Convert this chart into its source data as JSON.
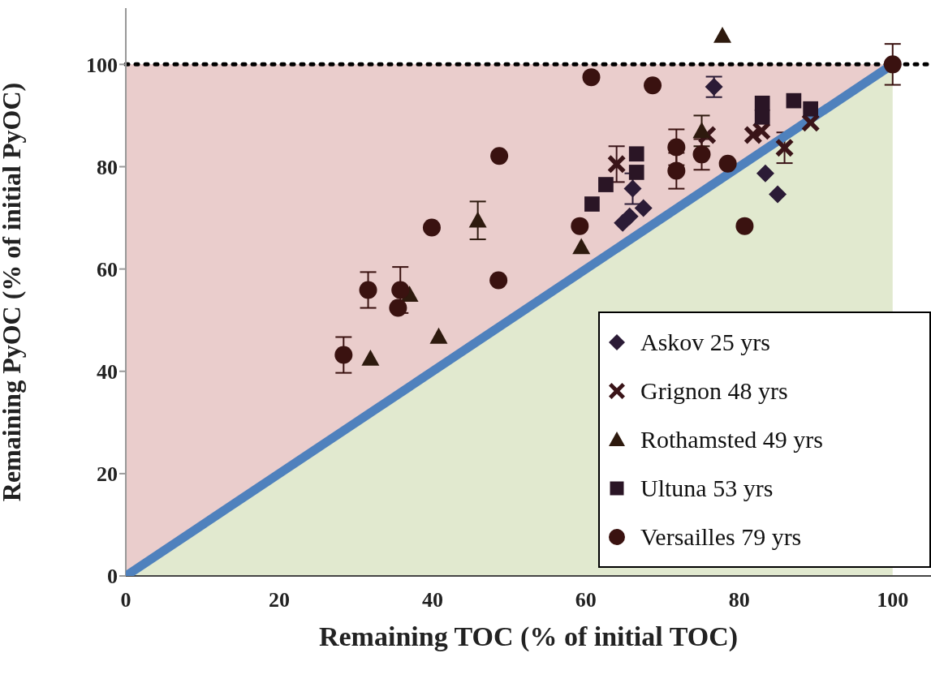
{
  "chart_data": {
    "type": "scatter",
    "xlabel": "Remaining TOC (% of initial TOC)",
    "ylabel": "Remaining PyOC (% of initial PyOC)",
    "xlim": [
      0,
      105
    ],
    "ylim": [
      0,
      111
    ],
    "xticks": [
      0,
      20,
      40,
      60,
      80,
      100
    ],
    "yticks": [
      0,
      20,
      40,
      60,
      80,
      100
    ],
    "legend": "bottom right",
    "series": [
      {
        "name": "Askov 25 yrs",
        "marker": "diamond",
        "color": "#2b1b36",
        "x": [
          76.7,
          64.8,
          65.7,
          67.5,
          66.1,
          83.4,
          85.0
        ],
        "values": [
          95.6,
          69.0,
          70.3,
          71.9,
          75.7,
          78.7,
          74.6
        ],
        "errors": [
          2,
          null,
          null,
          null,
          3,
          null,
          null
        ]
      },
      {
        "name": "Grignon 48 yrs",
        "marker": "cross",
        "color": "#3a1418",
        "x": [
          64.0,
          75.8,
          81.8,
          82.9,
          85.9,
          89.3
        ],
        "values": [
          80.5,
          86.2,
          86.2,
          87.0,
          83.7,
          88.6
        ],
        "errors": [
          3.5,
          null,
          null,
          null,
          3,
          null
        ]
      },
      {
        "name": "Rothamsted 49 yrs",
        "marker": "triangle",
        "color": "#2e1a0e",
        "x": [
          31.9,
          37.0,
          40.8,
          45.9,
          59.4,
          75.1,
          77.8
        ],
        "values": [
          42.5,
          55.0,
          46.8,
          69.5,
          64.3,
          87.0,
          105.6
        ],
        "errors": [
          null,
          null,
          null,
          3.7,
          null,
          3,
          null
        ]
      },
      {
        "name": "Ultuna 53 yrs",
        "marker": "square",
        "color": "#2a1525",
        "x": [
          60.8,
          62.6,
          66.6,
          66.6,
          83.0,
          83.0,
          87.1,
          89.3
        ],
        "values": [
          72.7,
          76.5,
          82.5,
          78.9,
          92.4,
          89.7,
          92.9,
          91.3
        ],
        "errors": [
          null,
          null,
          null,
          null,
          null,
          null,
          null,
          null
        ]
      },
      {
        "name": "Versailles 79 yrs",
        "marker": "circle",
        "color": "#3a1210",
        "x": [
          28.4,
          31.6,
          35.8,
          35.5,
          39.9,
          48.6,
          48.7,
          59.2,
          60.7,
          68.7,
          71.8,
          71.8,
          75.1,
          78.5,
          80.7,
          100.0
        ],
        "values": [
          43.2,
          55.9,
          55.9,
          52.4,
          68.1,
          57.8,
          82.1,
          68.4,
          97.5,
          95.9,
          83.8,
          79.2,
          82.4,
          80.6,
          68.4,
          100.0
        ],
        "errors": [
          3.5,
          3.5,
          4.5,
          null,
          null,
          null,
          null,
          null,
          null,
          null,
          3.5,
          3.5,
          3,
          null,
          null,
          4
        ]
      },
      {
        "type": "line",
        "color": "#4f81bd",
        "x": [
          0,
          100
        ],
        "values": [
          0,
          100
        ]
      }
    ],
    "ref_lines": [
      {
        "axis": "y",
        "value": 100,
        "color": "#000000",
        "line_style": "dotted"
      }
    ]
  }
}
